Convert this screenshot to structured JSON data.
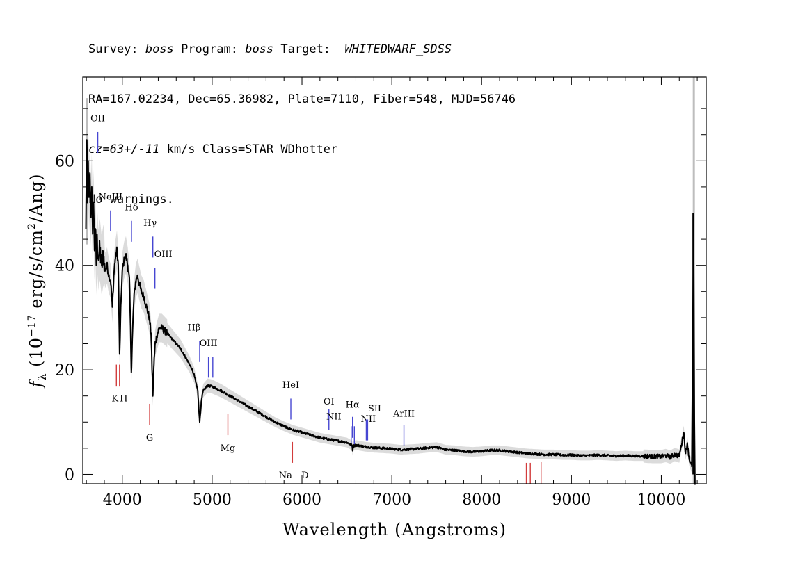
{
  "header": {
    "line1": {
      "survey_label": "Survey: ",
      "survey_value": "boss",
      "program_label": " Program: ",
      "program_value": "boss",
      "target_label": " Target:  ",
      "target_value": "WHITEDWARF_SDSS"
    },
    "line2": "RA=167.02234, Dec=65.36982, Plate=7110, Fiber=548, MJD=56746",
    "line3": {
      "cz_value": "cz=63+/-11",
      "rest": " km/s Class=STAR WDhotter"
    },
    "line4": "No warnings."
  },
  "chart_data": {
    "type": "line",
    "title": "",
    "xlabel": "Wavelength (Angstroms)",
    "ylabel": "f_λ (10^-17 erg/s/cm²/Ang)",
    "ylabel_parts": {
      "f": "f",
      "lambda": "λ",
      "open": " (10",
      "exp": "−17",
      "mid": " erg/s/cm",
      "sq": "2",
      "close": "/Ang)"
    },
    "xlim": [
      3560,
      10500
    ],
    "ylim": [
      -1.8,
      76
    ],
    "xticks": [
      4000,
      5000,
      6000,
      7000,
      8000,
      9000,
      10000
    ],
    "yticks": [
      0,
      20,
      40,
      60
    ],
    "colors": {
      "flux": "#000000",
      "error": "#bdbdbd",
      "emission": "#4646d2",
      "absorption": "#d23c3c"
    },
    "series": [
      {
        "type": "flux",
        "points": [
          [
            3595,
            47
          ],
          [
            3605,
            64
          ],
          [
            3612,
            52
          ],
          [
            3620,
            60
          ],
          [
            3630,
            53
          ],
          [
            3640,
            57
          ],
          [
            3650,
            50
          ],
          [
            3660,
            55
          ],
          [
            3670,
            46
          ],
          [
            3680,
            52
          ],
          [
            3690,
            43
          ],
          [
            3700,
            47
          ],
          [
            3710,
            40
          ],
          [
            3720,
            45
          ],
          [
            3735,
            41
          ],
          [
            3750,
            43
          ],
          [
            3770,
            40
          ],
          [
            3790,
            42
          ],
          [
            3810,
            39
          ],
          [
            3830,
            40
          ],
          [
            3850,
            38
          ],
          [
            3870,
            37
          ],
          [
            3889,
            32
          ],
          [
            3905,
            38
          ],
          [
            3920,
            41
          ],
          [
            3940,
            43
          ],
          [
            3955,
            40
          ],
          [
            3970,
            23
          ],
          [
            3985,
            33
          ],
          [
            4000,
            39
          ],
          [
            4020,
            41
          ],
          [
            4040,
            42
          ],
          [
            4060,
            40
          ],
          [
            4080,
            37
          ],
          [
            4101,
            19.5
          ],
          [
            4115,
            28
          ],
          [
            4130,
            34
          ],
          [
            4150,
            37
          ],
          [
            4170,
            38
          ],
          [
            4190,
            36.5
          ],
          [
            4210,
            35
          ],
          [
            4240,
            34
          ],
          [
            4270,
            32
          ],
          [
            4300,
            30
          ],
          [
            4320,
            27
          ],
          [
            4340,
            15
          ],
          [
            4352,
            21
          ],
          [
            4365,
            25
          ],
          [
            4385,
            26.5
          ],
          [
            4410,
            28
          ],
          [
            4440,
            28
          ],
          [
            4470,
            27.5
          ],
          [
            4500,
            27
          ],
          [
            4550,
            26
          ],
          [
            4600,
            25
          ],
          [
            4650,
            24
          ],
          [
            4700,
            22.5
          ],
          [
            4750,
            21
          ],
          [
            4800,
            19
          ],
          [
            4840,
            16
          ],
          [
            4861,
            10
          ],
          [
            4880,
            14
          ],
          [
            4900,
            16
          ],
          [
            4950,
            17
          ],
          [
            5000,
            16.8
          ],
          [
            5100,
            16
          ],
          [
            5200,
            15
          ],
          [
            5300,
            14
          ],
          [
            5400,
            13
          ],
          [
            5500,
            12
          ],
          [
            5600,
            11
          ],
          [
            5700,
            10
          ],
          [
            5800,
            9.2
          ],
          [
            5900,
            8.5
          ],
          [
            6000,
            8
          ],
          [
            6100,
            7.5
          ],
          [
            6200,
            7
          ],
          [
            6300,
            6.7
          ],
          [
            6400,
            6.4
          ],
          [
            6500,
            6.1
          ],
          [
            6560,
            5.5
          ],
          [
            6563,
            4.5
          ],
          [
            6570,
            5.4
          ],
          [
            6600,
            5.6
          ],
          [
            6700,
            5.3
          ],
          [
            6800,
            5.1
          ],
          [
            6900,
            5
          ],
          [
            7000,
            4.9
          ],
          [
            7100,
            4.7
          ],
          [
            7200,
            4.8
          ],
          [
            7300,
            4.9
          ],
          [
            7400,
            5.1
          ],
          [
            7500,
            5.2
          ],
          [
            7600,
            4.7
          ],
          [
            7700,
            4.6
          ],
          [
            7800,
            4.4
          ],
          [
            7900,
            4.3
          ],
          [
            8000,
            4.4
          ],
          [
            8100,
            4.6
          ],
          [
            8200,
            4.6
          ],
          [
            8300,
            4.4
          ],
          [
            8400,
            4.2
          ],
          [
            8500,
            4
          ],
          [
            8600,
            3.9
          ],
          [
            8700,
            3.8
          ],
          [
            8800,
            3.8
          ],
          [
            8900,
            3.7
          ],
          [
            9000,
            3.7
          ],
          [
            9100,
            3.6
          ],
          [
            9200,
            3.6
          ],
          [
            9300,
            3.7
          ],
          [
            9400,
            3.6
          ],
          [
            9500,
            3.5
          ],
          [
            9600,
            3.6
          ],
          [
            9700,
            3.5
          ],
          [
            9800,
            3.5
          ],
          [
            9900,
            3.4
          ],
          [
            10000,
            3.4
          ],
          [
            10050,
            3.6
          ],
          [
            10100,
            3.3
          ],
          [
            10150,
            3.8
          ],
          [
            10200,
            3.5
          ],
          [
            10250,
            8
          ],
          [
            10270,
            4
          ],
          [
            10290,
            6
          ],
          [
            10310,
            3
          ],
          [
            10340,
            1.5
          ],
          [
            10350,
            26
          ],
          [
            10360,
            44
          ],
          [
            10368,
            10
          ],
          [
            10375,
            -2
          ]
        ]
      }
    ],
    "emission_lines": [
      {
        "label": "OII",
        "wave": 3727
      },
      {
        "label": "NeIII",
        "wave": 3869
      },
      {
        "label": "Hδ",
        "wave": 4102
      },
      {
        "label": "Hγ",
        "wave": 4340
      },
      {
        "label": "OIII",
        "wave": 4363
      },
      {
        "label": "Hβ",
        "wave": 4861
      },
      {
        "label": "OIII",
        "wave": 4959
      },
      {
        "label": "OIII",
        "wave": 5007
      },
      {
        "label": "HeI",
        "wave": 5876
      },
      {
        "label": "OI",
        "wave": 6300
      },
      {
        "label": "NII",
        "wave": 6548
      },
      {
        "label": "Hα",
        "wave": 6563
      },
      {
        "label": "NII",
        "wave": 6583
      },
      {
        "label": "SII",
        "wave": 6716
      },
      {
        "label": "SII",
        "wave": 6731
      },
      {
        "label": "ArIII",
        "wave": 7135
      }
    ],
    "absorption_lines": [
      {
        "label": "K",
        "wave": 3934
      },
      {
        "label": "H",
        "wave": 3969
      },
      {
        "label": "G",
        "wave": 4304
      },
      {
        "label": "Mg",
        "wave": 5175
      },
      {
        "label": "Na",
        "wave": 5894
      },
      {
        "label": "D",
        "wave": 5894
      },
      {
        "label": "",
        "wave": 8498
      },
      {
        "label": "",
        "wave": 8542
      },
      {
        "label": "",
        "wave": 8662
      }
    ]
  }
}
